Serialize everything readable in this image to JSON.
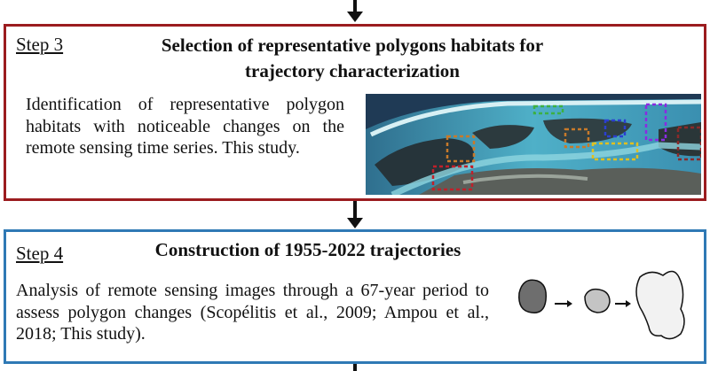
{
  "step3": {
    "label": "Step 3",
    "title_line1": "Selection of representative polygons habitats for",
    "title_line2": "trajectory characterization",
    "description": "Identification of representative polygon habitats with noticeable changes on the remote sensing time series. This study."
  },
  "step4": {
    "label": "Step 4",
    "title": "Construction of 1955-2022 trajectories",
    "description": "Analysis of remote sensing images through a 67-year period to assess polygon changes (Scopélitis et al., 2009; Ampou et al., 2018; This study)."
  },
  "colors": {
    "step3_border": "#9b1c1f",
    "step4_border": "#2f79b5",
    "polygon_red": "#c0202a",
    "polygon_orange": "#c87a2a",
    "polygon_green": "#3cb043",
    "polygon_blue": "#2b3fd0",
    "polygon_purple": "#8a2be2",
    "polygon_yellow": "#e0c020"
  },
  "icons": {
    "satellite_image": "satellite-image-icon",
    "polygon_trajectory": "polygon-trajectory-icon"
  }
}
